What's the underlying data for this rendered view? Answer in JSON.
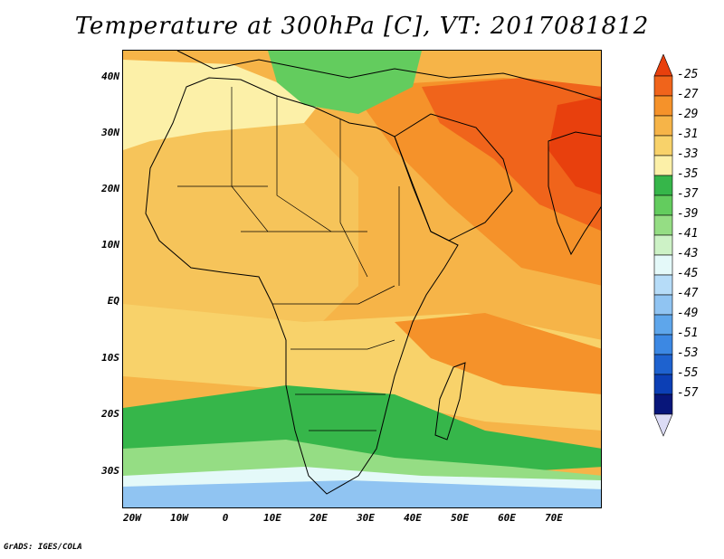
{
  "title": "Temperature at 300hPa [C], VT: 2017081812",
  "credit": "GrADS: IGES/COLA",
  "map": {
    "variable": "Temperature",
    "level": "300hPa",
    "units": "C",
    "valid_time": "2017081812",
    "lat_ticks": [
      "40N",
      "30N",
      "20N",
      "10N",
      "EQ",
      "10S",
      "20S",
      "30S"
    ],
    "lon_ticks": [
      "20W",
      "10W",
      "0",
      "10E",
      "20E",
      "30E",
      "40E",
      "50E",
      "60E",
      "70E"
    ],
    "lat_values": [
      40,
      30,
      20,
      10,
      0,
      -10,
      -20,
      -30
    ],
    "lon_values": [
      -20,
      -10,
      0,
      10,
      20,
      30,
      40,
      50,
      60,
      70
    ],
    "extent": {
      "lon_min": -22,
      "lon_max": 80,
      "lat_min": -37,
      "lat_max": 45
    }
  },
  "colorbar": {
    "labels": [
      "-25",
      "-27",
      "-29",
      "-31",
      "-33",
      "-35",
      "-37",
      "-39",
      "-41",
      "-43",
      "-45",
      "-47",
      "-49",
      "-51",
      "-53",
      "-55",
      "-57"
    ],
    "colors": [
      "#e8400d",
      "#f0641b",
      "#f5922a",
      "#f6b448",
      "#f8d26a",
      "#fcf0a8",
      "#36b64a",
      "#63cc5e",
      "#95dd84",
      "#cdf2c6",
      "#e4f9f9",
      "#b6dcf8",
      "#90c4f2",
      "#5ea6eb",
      "#3c88e3",
      "#1e62cf",
      "#0c3fb5",
      "#08167a"
    ],
    "top_arrow_color": "#e8400d",
    "bottom_arrow_color": "#dcdcf5"
  }
}
